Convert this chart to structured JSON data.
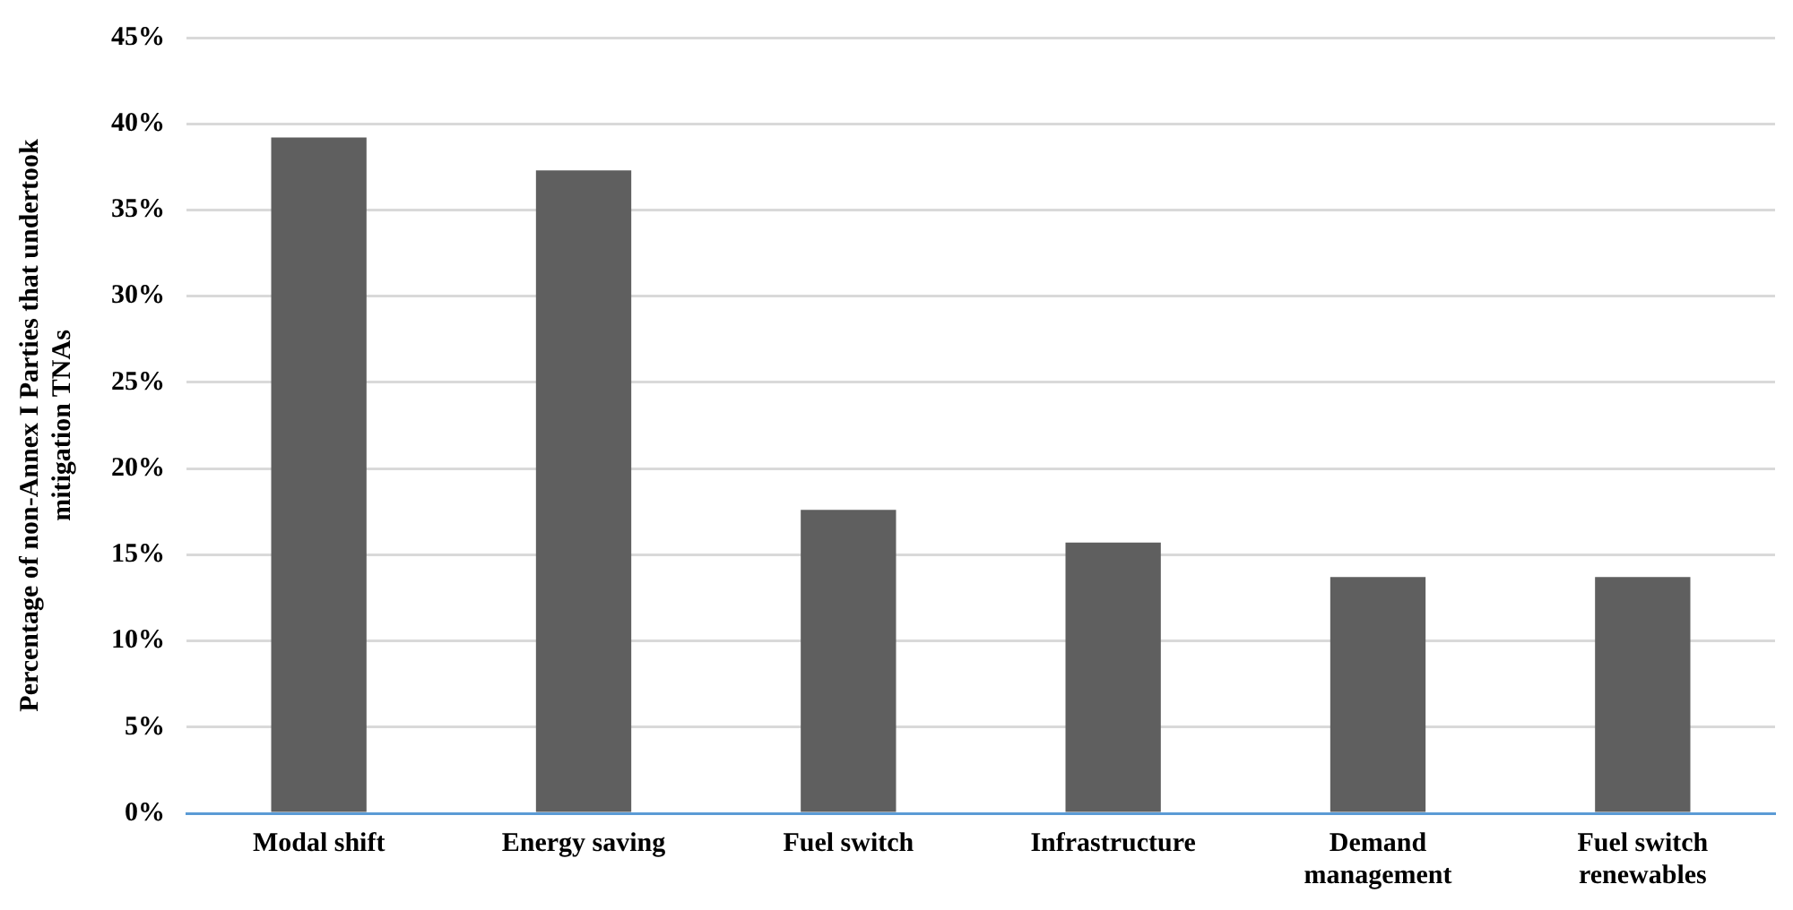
{
  "chart_data": {
    "type": "bar",
    "ylabel": "Percentage of non-Annex I Parties that undertook mitigation TNAs",
    "categories": [
      "Modal shift",
      "Energy saving",
      "Fuel switch",
      "Infrastructure",
      "Demand management",
      "Fuel switch renewables"
    ],
    "values": [
      39.2,
      37.3,
      17.6,
      15.7,
      13.7,
      13.7
    ],
    "color": "#5f5f5f",
    "ylim": [
      0,
      45
    ],
    "yticks": [
      {
        "value": 0,
        "label": "0%"
      },
      {
        "value": 5,
        "label": "5%"
      },
      {
        "value": 10,
        "label": "10%"
      },
      {
        "value": 15,
        "label": "15%"
      },
      {
        "value": 20,
        "label": "20%"
      },
      {
        "value": 25,
        "label": "25%"
      },
      {
        "value": 30,
        "label": "30%"
      },
      {
        "value": 35,
        "label": "35%"
      },
      {
        "value": 40,
        "label": "40%"
      },
      {
        "value": 45,
        "label": "45%"
      }
    ],
    "grid": "y",
    "legend": false
  }
}
